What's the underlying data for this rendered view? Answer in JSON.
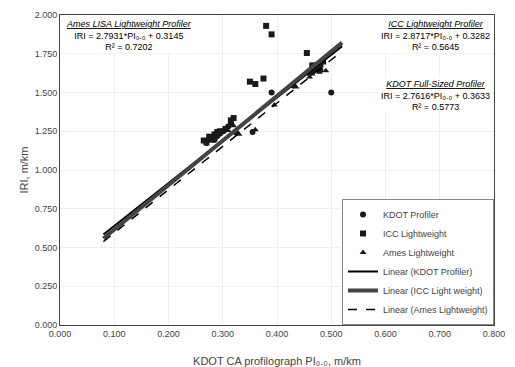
{
  "chart_data": {
    "type": "scatter",
    "xlabel": "KDOT CA profilograph PI₀.₀, m/km",
    "ylabel": "IRI, m/km",
    "xlim": [
      0.0,
      0.8
    ],
    "ylim": [
      0.0,
      2.0
    ],
    "xticks": [
      {
        "value": 0.0,
        "label": "0.000"
      },
      {
        "value": 0.1,
        "label": "0.100"
      },
      {
        "value": 0.2,
        "label": "0.200"
      },
      {
        "value": 0.3,
        "label": "0.300"
      },
      {
        "value": 0.4,
        "label": "0.400"
      },
      {
        "value": 0.5,
        "label": "0.500"
      },
      {
        "value": 0.6,
        "label": "0.600"
      },
      {
        "value": 0.7,
        "label": "0.700"
      },
      {
        "value": 0.8,
        "label": "0.800"
      }
    ],
    "yticks": [
      {
        "value": 0.0,
        "label": "0.000"
      },
      {
        "value": 0.25,
        "label": "0.250"
      },
      {
        "value": 0.5,
        "label": "0.500"
      },
      {
        "value": 0.75,
        "label": "0.750"
      },
      {
        "value": 1.0,
        "label": "1.000"
      },
      {
        "value": 1.25,
        "label": "1.250"
      },
      {
        "value": 1.5,
        "label": "1.500"
      },
      {
        "value": 1.75,
        "label": "1.750"
      },
      {
        "value": 2.0,
        "label": "2.000"
      }
    ],
    "grid": true,
    "legend": "lower right",
    "series": [
      {
        "name": "KDOT Profiler",
        "type": "scatter",
        "marker": "circle",
        "color": "#1a1a1a",
        "x": [
          0.27,
          0.275,
          0.28,
          0.285,
          0.29,
          0.295,
          0.3,
          0.305,
          0.31,
          0.315,
          0.325,
          0.355,
          0.39,
          0.43,
          0.46,
          0.465,
          0.47,
          0.475,
          0.48,
          0.5
        ],
        "values": [
          1.175,
          1.2,
          1.215,
          1.195,
          1.22,
          1.235,
          1.25,
          1.26,
          1.28,
          1.295,
          1.24,
          1.245,
          1.5,
          1.545,
          1.625,
          1.635,
          1.665,
          1.65,
          1.645,
          1.5
        ]
      },
      {
        "name": "ICC Lightweight",
        "type": "scatter",
        "marker": "square",
        "color": "#1a1a1a",
        "x": [
          0.265,
          0.275,
          0.28,
          0.285,
          0.29,
          0.295,
          0.305,
          0.315,
          0.32,
          0.35,
          0.36,
          0.375,
          0.38,
          0.39,
          0.455,
          0.465,
          0.47,
          0.48,
          0.485
        ],
        "values": [
          1.19,
          1.215,
          1.21,
          1.23,
          1.245,
          1.25,
          1.265,
          1.32,
          1.335,
          1.57,
          1.555,
          1.59,
          1.93,
          1.875,
          1.755,
          1.675,
          1.665,
          1.68,
          1.7
        ]
      },
      {
        "name": "Ames Lightweight",
        "type": "scatter",
        "marker": "triangle-up",
        "color": "#1a1a1a",
        "x": [
          0.27,
          0.275,
          0.28,
          0.285,
          0.29,
          0.295,
          0.3,
          0.31,
          0.32,
          0.33,
          0.36,
          0.395,
          0.435,
          0.46,
          0.465,
          0.47,
          0.478,
          0.49
        ],
        "values": [
          1.17,
          1.195,
          1.185,
          1.205,
          1.225,
          1.235,
          1.245,
          1.255,
          1.285,
          1.23,
          1.26,
          1.42,
          1.535,
          1.6,
          1.62,
          1.65,
          1.63,
          1.64
        ]
      },
      {
        "name": "Linear (KDOT Profiler)",
        "type": "line",
        "line_style": "solid",
        "color": "#000000",
        "x": [
          0.08,
          0.52
        ],
        "values": [
          0.584228,
          1.799332
        ]
      },
      {
        "name": "Linear (ICC Light weight)",
        "type": "line",
        "line_style": "solid",
        "color": "#444444",
        "x": [
          0.08,
          0.52
        ],
        "values": [
          0.557936,
          1.821484
        ]
      },
      {
        "name": "Linear (Ames Lightweight)",
        "type": "line",
        "line_style": "dash",
        "color": "#000000",
        "x": [
          0.08,
          0.52
        ],
        "values": [
          0.537948,
          1.766912
        ]
      }
    ],
    "annotations": [
      {
        "title": "ICC Lightweight Profiler",
        "lines": [
          "IRI = 2.8717*PI₀.₀ + 0.3282",
          "R² = 0.5645"
        ]
      },
      {
        "title": "KDOT Full-Sized Profiler",
        "lines": [
          "IRI = 2.7616*PI₀.₀ + 0.3633",
          "R² = 0.5773"
        ]
      },
      {
        "title": "Ames LISA Lightweight Profiler",
        "lines": [
          "IRI = 2.7931*PI₀.₀ + 0.3145",
          "R² = 0.7202"
        ]
      }
    ]
  }
}
